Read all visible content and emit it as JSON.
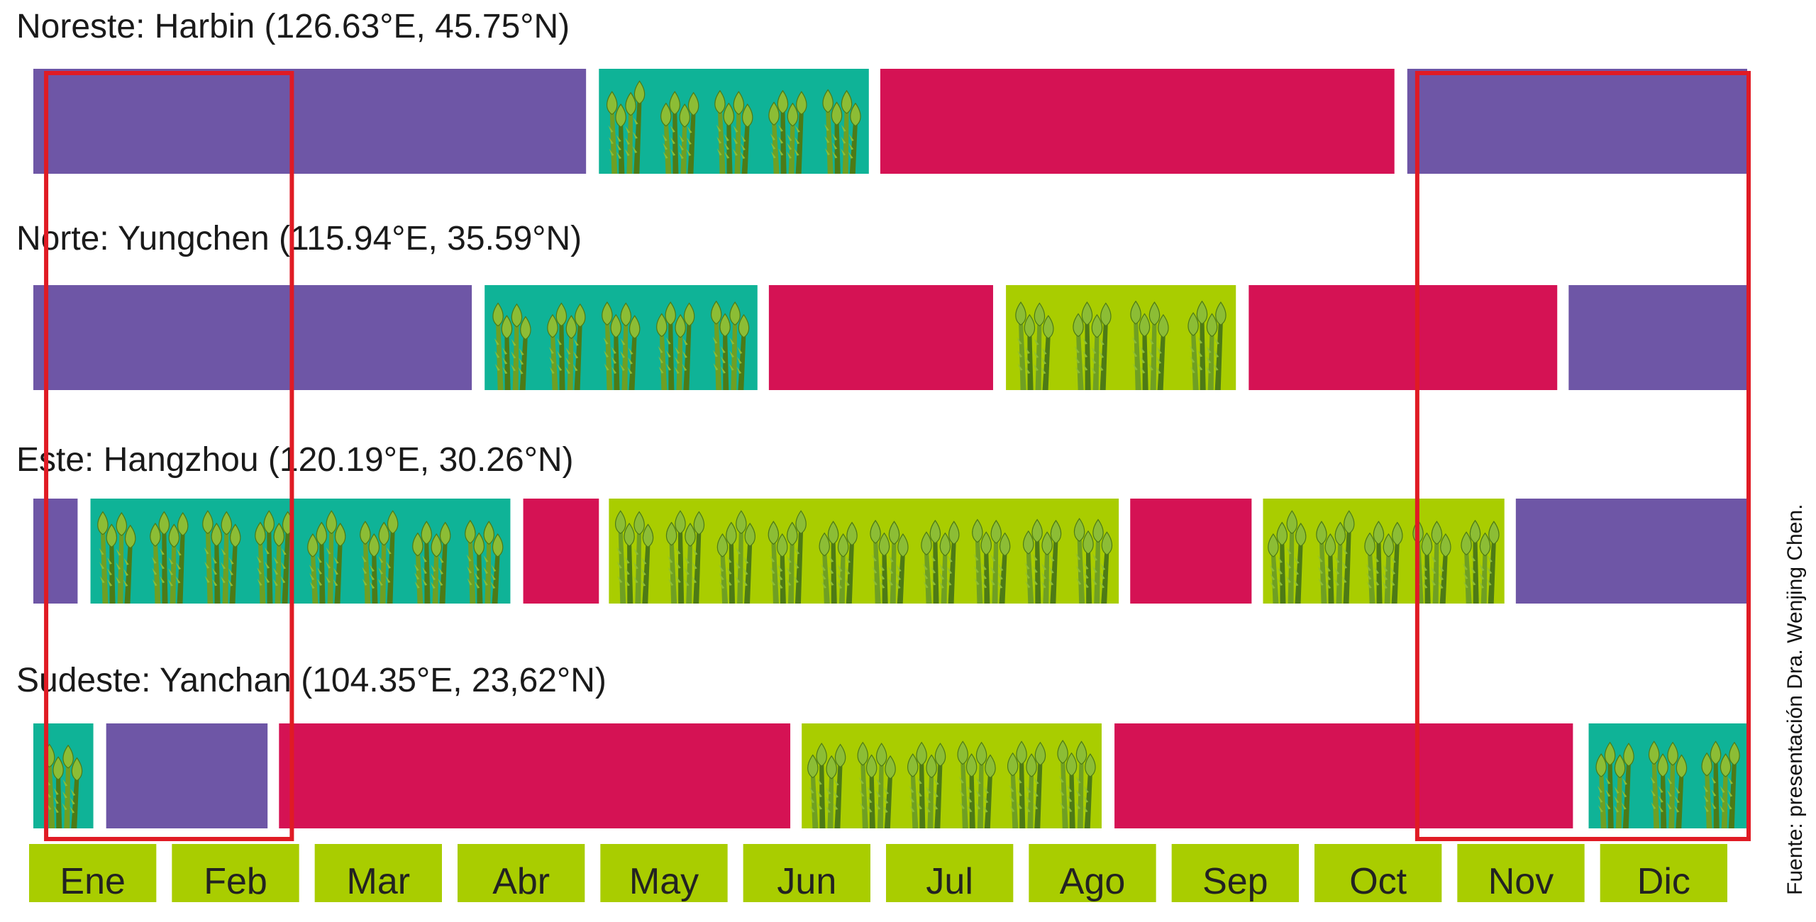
{
  "colors": {
    "purple": "#6e56a6",
    "crimson": "#d51254",
    "teal": "#0fb397",
    "lime": "#a9cd00",
    "stem": "#6f9f23",
    "stem_dark": "#4d7a16",
    "tip": "#8cbd35",
    "highlight": "#e01b24",
    "month_box": "#a9cd00"
  },
  "chart_data": {
    "type": "timeline",
    "unit": "month",
    "x_range": [
      0,
      12
    ],
    "month_labels": [
      "Ene",
      "Feb",
      "Mar",
      "Abr",
      "May",
      "Jun",
      "Jul",
      "Ago",
      "Sep",
      "Oct",
      "Nov",
      "Dic"
    ],
    "credit": "Fuente: presentación Dra. Wenjing Chen.",
    "rows": [
      {
        "label": "Noreste: Harbin (126.63°E, 45.75°N)",
        "segments": [
          {
            "start": 0.0,
            "end": 3.87,
            "fill": "purple"
          },
          {
            "start": 3.96,
            "end": 5.85,
            "fill": "teal",
            "asparagus": true
          },
          {
            "start": 5.93,
            "end": 9.53,
            "fill": "crimson"
          },
          {
            "start": 9.62,
            "end": 12.0,
            "fill": "purple"
          }
        ]
      },
      {
        "label": "Norte: Yungchen (115.94°E, 35.59°N)",
        "segments": [
          {
            "start": 0.0,
            "end": 3.07,
            "fill": "purple"
          },
          {
            "start": 3.16,
            "end": 5.07,
            "fill": "teal",
            "asparagus": true
          },
          {
            "start": 5.15,
            "end": 6.72,
            "fill": "crimson"
          },
          {
            "start": 6.81,
            "end": 8.42,
            "fill": "lime",
            "asparagus": true
          },
          {
            "start": 8.51,
            "end": 10.67,
            "fill": "crimson"
          },
          {
            "start": 10.75,
            "end": 12.0,
            "fill": "purple"
          }
        ]
      },
      {
        "label": "Este: Hangzhou (120.19°E, 30.26°N)",
        "segments": [
          {
            "start": 0.0,
            "end": 0.31,
            "fill": "purple"
          },
          {
            "start": 0.4,
            "end": 3.34,
            "fill": "teal",
            "asparagus": true
          },
          {
            "start": 3.43,
            "end": 3.96,
            "fill": "crimson"
          },
          {
            "start": 4.03,
            "end": 7.6,
            "fill": "lime",
            "asparagus": true
          },
          {
            "start": 7.68,
            "end": 8.53,
            "fill": "crimson"
          },
          {
            "start": 8.61,
            "end": 10.3,
            "fill": "lime",
            "asparagus": true
          },
          {
            "start": 10.38,
            "end": 12.0,
            "fill": "purple"
          }
        ]
      },
      {
        "label": "Sudeste: Yanchan (104.35°E, 23,62°N)",
        "segments": [
          {
            "start": 0.0,
            "end": 0.42,
            "fill": "teal",
            "asparagus": true
          },
          {
            "start": 0.51,
            "end": 1.64,
            "fill": "purple"
          },
          {
            "start": 1.72,
            "end": 5.3,
            "fill": "crimson"
          },
          {
            "start": 5.38,
            "end": 7.48,
            "fill": "lime",
            "asparagus": true
          },
          {
            "start": 7.57,
            "end": 10.78,
            "fill": "crimson"
          },
          {
            "start": 10.89,
            "end": 12.0,
            "fill": "teal",
            "asparagus": true
          }
        ]
      }
    ],
    "highlights": [
      {
        "start": 0.05,
        "end": 1.8,
        "label": ""
      },
      {
        "start": 9.65,
        "end": 12.0,
        "label": ""
      }
    ]
  }
}
